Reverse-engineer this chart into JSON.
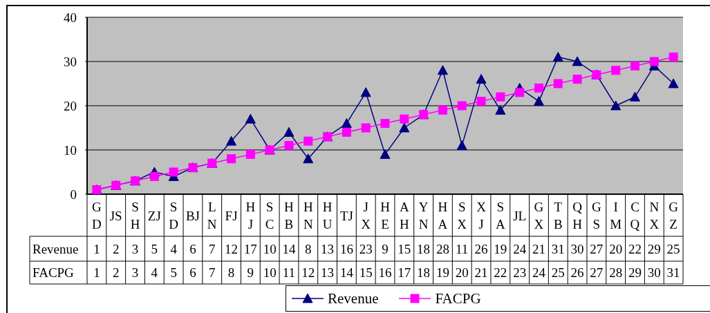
{
  "chart_data": {
    "type": "line",
    "categories": [
      "GD",
      "JS",
      "SH",
      "ZJ",
      "SD",
      "BJ",
      "LN",
      "FJ",
      "HJ",
      "SC",
      "HB",
      "HN",
      "HU",
      "TJ",
      "JX",
      "HE",
      "AH",
      "YN",
      "HA",
      "SX",
      "XJ",
      "SA",
      "JL",
      "GX",
      "TB",
      "QH",
      "GS",
      "IM",
      "CQ",
      "NX",
      "GZ"
    ],
    "series": [
      {
        "name": "Revenue",
        "color": "#000080",
        "marker": "triangle",
        "values": [
          1,
          2,
          3,
          5,
          4,
          6,
          7,
          12,
          17,
          10,
          14,
          8,
          13,
          16,
          23,
          9,
          15,
          18,
          28,
          11,
          26,
          19,
          24,
          21,
          31,
          30,
          27,
          20,
          22,
          29,
          25
        ]
      },
      {
        "name": "FACPG",
        "color": "#ff00ff",
        "marker": "square",
        "values": [
          1,
          2,
          3,
          4,
          5,
          6,
          7,
          8,
          9,
          10,
          11,
          12,
          13,
          14,
          15,
          16,
          17,
          18,
          19,
          20,
          21,
          22,
          23,
          24,
          25,
          26,
          27,
          28,
          29,
          30,
          31
        ]
      }
    ],
    "ylim": [
      0,
      40
    ],
    "yticks": [
      0,
      10,
      20,
      30,
      40
    ],
    "grid": "y",
    "legend": "bottom",
    "data_labels": true,
    "line_style": "solid"
  }
}
